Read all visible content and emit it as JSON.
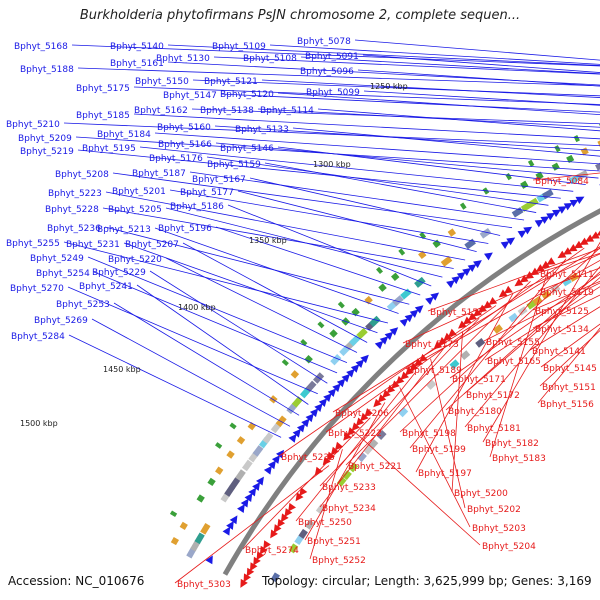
{
  "title": "Burkholderia phytofirmans PsJN chromosome 2, complete sequen...",
  "footer": {
    "accession": "Accession: NC_010676",
    "summary": "Topology: circular; Length: 3,625,999 bp; Genes: 3,169"
  },
  "scale_labels": [
    "1250 kbp",
    "1300 kbp",
    "1350 kbp",
    "1400 kbp",
    "1450 kbp",
    "1500 kbp"
  ],
  "colors": {
    "forward_strand": "#1a1ae6",
    "reverse_strand": "#e61a1a",
    "backbone": "#808080"
  },
  "forward_labels": [
    {
      "text": "Bphyt_5168"
    },
    {
      "text": "Bphyt_5140"
    },
    {
      "text": "Bphyt_5109"
    },
    {
      "text": "Bphyt_5078"
    },
    {
      "text": "Bphyt_5130"
    },
    {
      "text": "Bphyt_5108"
    },
    {
      "text": "Bphyt_5091"
    },
    {
      "text": "Bphyt_5188"
    },
    {
      "text": "Bphyt_5161"
    },
    {
      "text": "Bphyt_5096"
    },
    {
      "text": "Bphyt_5150"
    },
    {
      "text": "Bphyt_5121"
    },
    {
      "text": "Bphyt_5175"
    },
    {
      "text": "Bphyt_5099"
    },
    {
      "text": "Bphyt_5147"
    },
    {
      "text": "Bphyt_5120"
    },
    {
      "text": "Bphyt_5162"
    },
    {
      "text": "Bphyt_5138"
    },
    {
      "text": "Bphyt_5114"
    },
    {
      "text": "Bphyt_5185"
    },
    {
      "text": "Bphyt_5210"
    },
    {
      "text": "Bphyt_5160"
    },
    {
      "text": "Bphyt_5133"
    },
    {
      "text": "Bphyt_5184"
    },
    {
      "text": "Bphyt_5209"
    },
    {
      "text": "Bphyt_5166"
    },
    {
      "text": "Bphyt_5146"
    },
    {
      "text": "Bphyt_5195"
    },
    {
      "text": "Bphyt_5219"
    },
    {
      "text": "Bphyt_5176"
    },
    {
      "text": "Bphyt_5159"
    },
    {
      "text": "Bphyt_5187"
    },
    {
      "text": "Bphyt_5208"
    },
    {
      "text": "Bphyt_5167"
    },
    {
      "text": "Bphyt_5201"
    },
    {
      "text": "Bphyt_5177"
    },
    {
      "text": "Bphyt_5223"
    },
    {
      "text": "Bphyt_5228"
    },
    {
      "text": "Bphyt_5205"
    },
    {
      "text": "Bphyt_5186"
    },
    {
      "text": "Bphyt_5196"
    },
    {
      "text": "Bphyt_5236"
    },
    {
      "text": "Bphyt_5213"
    },
    {
      "text": "Bphyt_5255"
    },
    {
      "text": "Bphyt_5231"
    },
    {
      "text": "Bphyt_5207"
    },
    {
      "text": "Bphyt_5220"
    },
    {
      "text": "Bphyt_5249"
    },
    {
      "text": "Bphyt_5254"
    },
    {
      "text": "Bphyt_5229"
    },
    {
      "text": "Bphyt_5270"
    },
    {
      "text": "Bphyt_5241"
    },
    {
      "text": "Bphyt_5253"
    },
    {
      "text": "Bphyt_5269"
    },
    {
      "text": "Bphyt_5284"
    }
  ],
  "reverse_labels": [
    {
      "text": "Bphyt_5084"
    },
    {
      "text": "Bphyt_5111"
    },
    {
      "text": "Bphyt_5119"
    },
    {
      "text": "Bphyt_5125"
    },
    {
      "text": "Bphyt_5134"
    },
    {
      "text": "Bphyt_5157"
    },
    {
      "text": "Bphyt_5155"
    },
    {
      "text": "Bphyt_5141"
    },
    {
      "text": "Bphyt_5145"
    },
    {
      "text": "Bphyt_5173"
    },
    {
      "text": "Bphyt_5165"
    },
    {
      "text": "Bphyt_5151"
    },
    {
      "text": "Bphyt_5189"
    },
    {
      "text": "Bphyt_5171"
    },
    {
      "text": "Bphyt_5156"
    },
    {
      "text": "Bphyt_5172"
    },
    {
      "text": "Bphyt_5180"
    },
    {
      "text": "Bphyt_5206"
    },
    {
      "text": "Bphyt_5181"
    },
    {
      "text": "Bphyt_5198"
    },
    {
      "text": "Bphyt_5182"
    },
    {
      "text": "Bphyt_5222"
    },
    {
      "text": "Bphyt_5199"
    },
    {
      "text": "Bphyt_5183"
    },
    {
      "text": "Bphyt_5221"
    },
    {
      "text": "Bphyt_5197"
    },
    {
      "text": "Bphyt_5235"
    },
    {
      "text": "Bphyt_5233"
    },
    {
      "text": "Bphyt_5200"
    },
    {
      "text": "Bphyt_5234"
    },
    {
      "text": "Bphyt_5202"
    },
    {
      "text": "Bphyt_5250"
    },
    {
      "text": "Bphyt_5203"
    },
    {
      "text": "Bphyt_5251"
    },
    {
      "text": "Bphyt_5274"
    },
    {
      "text": "Bphyt_5204"
    },
    {
      "text": "Bphyt_5252"
    },
    {
      "text": "Bphyt_5303"
    }
  ]
}
